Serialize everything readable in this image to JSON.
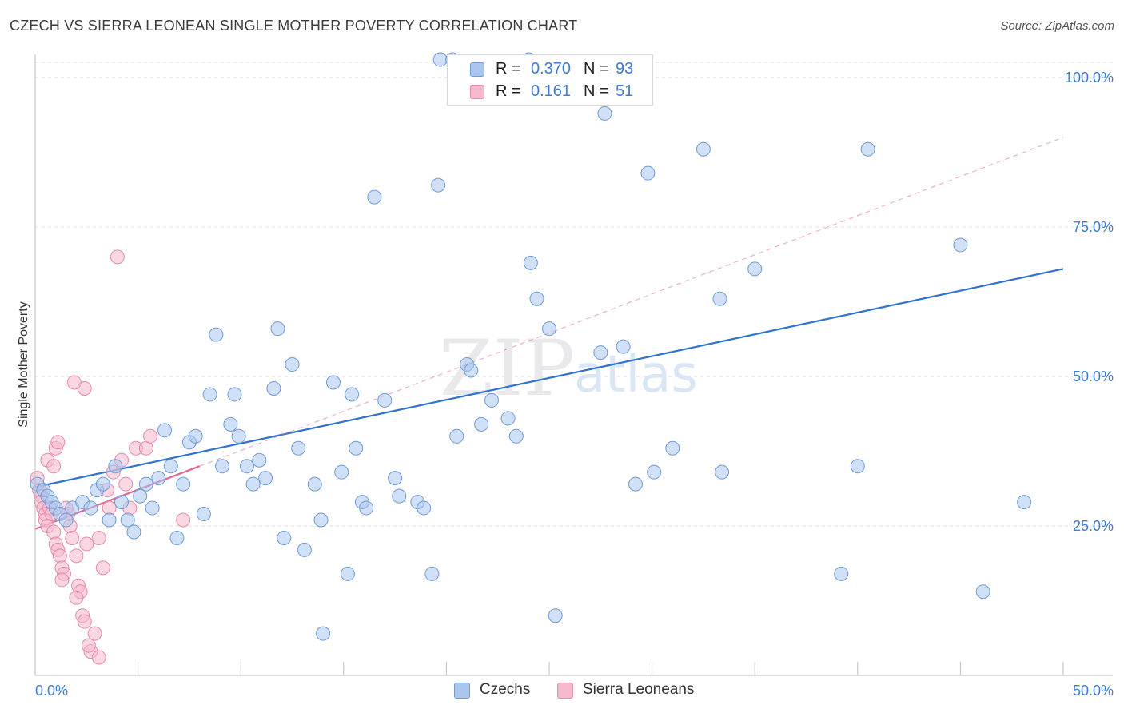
{
  "title": "CZECH VS SIERRA LEONEAN SINGLE MOTHER POVERTY CORRELATION CHART",
  "source": "Source: ZipAtlas.com",
  "watermark": {
    "zip": "ZIP",
    "atlas": "atlas"
  },
  "colors": {
    "blue_fill": "#aac6ee",
    "blue_stroke": "#6f9bd8",
    "blue_line": "#2f72d0",
    "pink_fill": "#f6b8cc",
    "pink_stroke": "#e68aab",
    "pink_line": "#e0668f",
    "axis_text": "#3f7bd0",
    "grid": "#dcdcdc"
  },
  "legend": {
    "rows": [
      {
        "r_label": "R =",
        "r_value": "0.370",
        "n_label": "N =",
        "n_value": "93",
        "color": "blue"
      },
      {
        "r_label": "R =",
        "r_value": "0.161",
        "n_label": "N =",
        "n_value": "51",
        "color": "pink"
      }
    ]
  },
  "bottom_legend": [
    {
      "label": "Czechs",
      "color": "blue"
    },
    {
      "label": "Sierra Leoneans",
      "color": "pink"
    }
  ],
  "chart_data": {
    "type": "scatter",
    "title": "CZECH VS SIERRA LEONEAN SINGLE MOTHER POVERTY CORRELATION CHART",
    "xlabel": "",
    "ylabel": "Single Mother Poverty",
    "xlim": [
      0,
      50
    ],
    "ylim": [
      0,
      100
    ],
    "x_tick_labels": [
      "0.0%",
      "50.0%"
    ],
    "y_tick_labels": [
      {
        "value": 25,
        "label": "25.0%"
      },
      {
        "value": 50,
        "label": "50.0%"
      },
      {
        "value": 75,
        "label": "75.0%"
      },
      {
        "value": 100,
        "label": "100.0%"
      }
    ],
    "grid": true,
    "legend_position": "top-center",
    "series": [
      {
        "name": "Czechs",
        "color": "blue",
        "r": 0.37,
        "n": 93,
        "trend": {
          "x": [
            0,
            50
          ],
          "y": [
            31.5,
            68.0
          ],
          "style": "solid"
        },
        "points": [
          [
            0.1,
            32
          ],
          [
            0.4,
            31
          ],
          [
            0.6,
            30
          ],
          [
            0.8,
            29
          ],
          [
            1.0,
            28
          ],
          [
            1.2,
            27
          ],
          [
            1.5,
            26
          ],
          [
            1.8,
            28
          ],
          [
            2.3,
            29
          ],
          [
            2.7,
            28
          ],
          [
            3.0,
            31
          ],
          [
            3.3,
            32
          ],
          [
            3.6,
            26
          ],
          [
            3.9,
            35
          ],
          [
            4.2,
            29
          ],
          [
            4.5,
            26
          ],
          [
            4.8,
            24
          ],
          [
            5.1,
            30
          ],
          [
            5.4,
            32
          ],
          [
            5.7,
            28
          ],
          [
            6.0,
            33
          ],
          [
            6.3,
            41
          ],
          [
            6.6,
            35
          ],
          [
            6.9,
            23
          ],
          [
            7.2,
            32
          ],
          [
            7.5,
            39
          ],
          [
            7.8,
            40
          ],
          [
            8.2,
            27
          ],
          [
            8.5,
            47
          ],
          [
            8.8,
            57
          ],
          [
            9.1,
            35
          ],
          [
            9.5,
            42
          ],
          [
            9.7,
            47
          ],
          [
            9.9,
            40
          ],
          [
            10.3,
            35
          ],
          [
            10.6,
            32
          ],
          [
            10.9,
            36
          ],
          [
            11.2,
            33
          ],
          [
            11.6,
            48
          ],
          [
            11.8,
            58
          ],
          [
            12.1,
            23
          ],
          [
            12.5,
            52
          ],
          [
            12.8,
            38
          ],
          [
            13.1,
            21
          ],
          [
            13.6,
            32
          ],
          [
            13.9,
            26
          ],
          [
            14.0,
            7
          ],
          [
            14.5,
            49
          ],
          [
            14.9,
            34
          ],
          [
            15.2,
            17
          ],
          [
            15.4,
            47
          ],
          [
            15.6,
            38
          ],
          [
            15.9,
            29
          ],
          [
            16.1,
            28
          ],
          [
            16.5,
            80
          ],
          [
            17.0,
            46
          ],
          [
            17.5,
            33
          ],
          [
            17.7,
            30
          ],
          [
            18.6,
            29
          ],
          [
            18.9,
            28
          ],
          [
            19.3,
            17
          ],
          [
            19.6,
            82
          ],
          [
            19.7,
            103
          ],
          [
            20.3,
            103
          ],
          [
            20.5,
            40
          ],
          [
            21.0,
            52
          ],
          [
            21.2,
            51
          ],
          [
            21.7,
            42
          ],
          [
            22.2,
            46
          ],
          [
            23.0,
            43
          ],
          [
            23.4,
            40
          ],
          [
            24.1,
            69
          ],
          [
            24.4,
            63
          ],
          [
            25.0,
            58
          ],
          [
            25.3,
            10
          ],
          [
            27.5,
            54
          ],
          [
            27.7,
            94
          ],
          [
            28.6,
            55
          ],
          [
            29.2,
            32
          ],
          [
            29.8,
            84
          ],
          [
            30.1,
            34
          ],
          [
            31.0,
            38
          ],
          [
            32.5,
            88
          ],
          [
            33.3,
            63
          ],
          [
            33.4,
            34
          ],
          [
            35.0,
            68
          ],
          [
            39.2,
            17
          ],
          [
            40.0,
            35
          ],
          [
            40.5,
            88
          ],
          [
            45.0,
            72
          ],
          [
            46.1,
            14
          ],
          [
            48.1,
            29
          ],
          [
            24.0,
            103
          ]
        ]
      },
      {
        "name": "Sierra Leoneans",
        "color": "pink",
        "r": 0.161,
        "n": 51,
        "trend": {
          "x": [
            0,
            8
          ],
          "y": [
            24.5,
            35.0
          ],
          "style": "solid"
        },
        "trend_extended": {
          "x": [
            8,
            50
          ],
          "y": [
            35.0,
            90.0
          ],
          "style": "dashed"
        },
        "points": [
          [
            0.1,
            33
          ],
          [
            0.2,
            31
          ],
          [
            0.3,
            30
          ],
          [
            0.3,
            29
          ],
          [
            0.4,
            28
          ],
          [
            0.5,
            27
          ],
          [
            0.5,
            26
          ],
          [
            0.6,
            25
          ],
          [
            0.7,
            28
          ],
          [
            0.8,
            27
          ],
          [
            0.9,
            24
          ],
          [
            1.0,
            22
          ],
          [
            1.1,
            21
          ],
          [
            1.2,
            20
          ],
          [
            1.3,
            18
          ],
          [
            1.4,
            17
          ],
          [
            1.5,
            28
          ],
          [
            1.6,
            27
          ],
          [
            1.7,
            25
          ],
          [
            1.8,
            23
          ],
          [
            2.0,
            20
          ],
          [
            2.1,
            15
          ],
          [
            2.2,
            14
          ],
          [
            2.3,
            10
          ],
          [
            2.4,
            9
          ],
          [
            2.5,
            22
          ],
          [
            2.7,
            4
          ],
          [
            2.9,
            7
          ],
          [
            3.1,
            23
          ],
          [
            3.3,
            18
          ],
          [
            3.5,
            31
          ],
          [
            3.6,
            28
          ],
          [
            3.8,
            34
          ],
          [
            4.0,
            70
          ],
          [
            4.2,
            36
          ],
          [
            4.4,
            32
          ],
          [
            4.6,
            28
          ],
          [
            4.9,
            38
          ],
          [
            1.0,
            38
          ],
          [
            1.1,
            39
          ],
          [
            1.9,
            49
          ],
          [
            2.4,
            48
          ],
          [
            0.6,
            36
          ],
          [
            0.9,
            35
          ],
          [
            5.4,
            38
          ],
          [
            5.6,
            40
          ],
          [
            7.2,
            26
          ],
          [
            1.3,
            16
          ],
          [
            2.0,
            13
          ],
          [
            2.6,
            5
          ],
          [
            3.1,
            3
          ]
        ]
      }
    ]
  }
}
